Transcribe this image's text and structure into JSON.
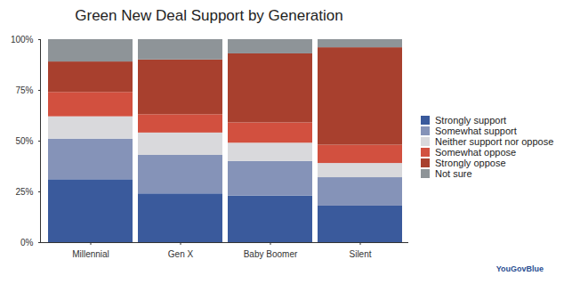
{
  "chart_data": {
    "type": "bar",
    "title": "Green New Deal Support by Generation",
    "caption": "YouGovBlue",
    "stacked": true,
    "grid": false,
    "legend": "right",
    "categories": [
      "Millennial",
      "Gen X",
      "Baby Boomer",
      "Silent"
    ],
    "series": [
      {
        "name": "Strongly support",
        "color": "#3a5a9c",
        "values": [
          31,
          24,
          23,
          18
        ]
      },
      {
        "name": "Somewhat support",
        "color": "#8593b8",
        "values": [
          20,
          19,
          17,
          14
        ]
      },
      {
        "name": "Neither support nor oppose",
        "color": "#d9d9dc",
        "values": [
          11,
          11,
          9,
          7
        ]
      },
      {
        "name": "Somewhat oppose",
        "color": "#d2503f",
        "values": [
          12,
          9,
          10,
          9
        ]
      },
      {
        "name": "Strongly oppose",
        "color": "#a8402e",
        "values": [
          15,
          27,
          34,
          48
        ]
      },
      {
        "name": "Not sure",
        "color": "#8e9498",
        "values": [
          11,
          10,
          7,
          4
        ]
      }
    ],
    "ylim": [
      0,
      100
    ],
    "yticks": [
      {
        "value": 0,
        "label": "0%"
      },
      {
        "value": 25,
        "label": "25%"
      },
      {
        "value": 50,
        "label": "50%"
      },
      {
        "value": 75,
        "label": "75%"
      },
      {
        "value": 100,
        "label": "100%"
      }
    ]
  }
}
